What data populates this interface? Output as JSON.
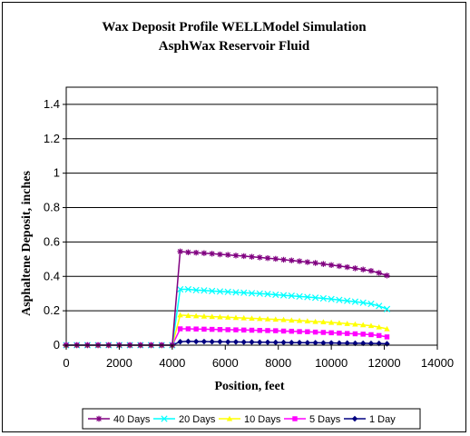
{
  "chart_data": {
    "type": "line",
    "title": "Wax Deposit Profile WELLModel Simulation",
    "subtitle": "AsphWax Reservoir Fluid",
    "xlabel": "Position, feet",
    "ylabel": "Asphaltene Deposit, inches",
    "xlim": [
      0,
      14000
    ],
    "ylim": [
      0,
      1.5
    ],
    "x_ticks": [
      "0",
      "2000",
      "4000",
      "6000",
      "8000",
      "10000",
      "12000",
      "14000"
    ],
    "y_ticks": [
      "0",
      "0.2",
      "0.4",
      "0.6",
      "0.8",
      "1",
      "1.2",
      "1.4"
    ],
    "grid": "horizontal",
    "legend_position": "bottom",
    "series": [
      {
        "name": "40 Days",
        "color": "#800080",
        "marker": "star",
        "x": [
          0,
          400,
          800,
          1200,
          1600,
          2000,
          2400,
          2800,
          3200,
          3600,
          4000,
          4300,
          4600,
          4900,
          5200,
          5500,
          5800,
          6100,
          6400,
          6700,
          7000,
          7300,
          7600,
          7900,
          8200,
          8500,
          8800,
          9100,
          9400,
          9700,
          10000,
          10300,
          10600,
          10900,
          11200,
          11500,
          11800,
          12100
        ],
        "y": [
          0,
          0,
          0,
          0,
          0,
          0,
          0,
          0,
          0,
          0,
          0,
          0.545,
          0.54,
          0.538,
          0.535,
          0.532,
          0.528,
          0.525,
          0.521,
          0.518,
          0.514,
          0.51,
          0.506,
          0.502,
          0.497,
          0.493,
          0.488,
          0.483,
          0.478,
          0.472,
          0.466,
          0.46,
          0.454,
          0.447,
          0.44,
          0.432,
          0.42,
          0.405
        ]
      },
      {
        "name": "20 Days",
        "color": "#00FFFF",
        "marker": "x",
        "x": [
          0,
          400,
          800,
          1200,
          1600,
          2000,
          2400,
          2800,
          3200,
          3600,
          4000,
          4300,
          4600,
          4900,
          5200,
          5500,
          5800,
          6100,
          6400,
          6700,
          7000,
          7300,
          7600,
          7900,
          8200,
          8500,
          8800,
          9100,
          9400,
          9700,
          10000,
          10300,
          10600,
          10900,
          11200,
          11500,
          11800,
          12100
        ],
        "y": [
          0,
          0,
          0,
          0,
          0,
          0,
          0,
          0,
          0,
          0,
          0,
          0.325,
          0.325,
          0.32,
          0.318,
          0.315,
          0.312,
          0.31,
          0.307,
          0.305,
          0.302,
          0.3,
          0.297,
          0.293,
          0.29,
          0.287,
          0.283,
          0.28,
          0.276,
          0.272,
          0.268,
          0.263,
          0.258,
          0.253,
          0.247,
          0.24,
          0.228,
          0.21
        ]
      },
      {
        "name": "10 Days",
        "color": "#FFFF00",
        "marker": "triangle",
        "x": [
          0,
          400,
          800,
          1200,
          1600,
          2000,
          2400,
          2800,
          3200,
          3600,
          4000,
          4300,
          4600,
          4900,
          5200,
          5500,
          5800,
          6100,
          6400,
          6700,
          7000,
          7300,
          7600,
          7900,
          8200,
          8500,
          8800,
          9100,
          9400,
          9700,
          10000,
          10300,
          10600,
          10900,
          11200,
          11500,
          11800,
          12100
        ],
        "y": [
          0,
          0,
          0,
          0,
          0,
          0,
          0,
          0,
          0,
          0,
          0,
          0.175,
          0.172,
          0.17,
          0.168,
          0.166,
          0.164,
          0.162,
          0.16,
          0.158,
          0.156,
          0.154,
          0.152,
          0.15,
          0.148,
          0.145,
          0.143,
          0.14,
          0.137,
          0.135,
          0.132,
          0.129,
          0.125,
          0.122,
          0.118,
          0.113,
          0.105,
          0.095
        ]
      },
      {
        "name": "5 Days",
        "color": "#FF00FF",
        "marker": "square",
        "x": [
          0,
          400,
          800,
          1200,
          1600,
          2000,
          2400,
          2800,
          3200,
          3600,
          4000,
          4300,
          4600,
          4900,
          5200,
          5500,
          5800,
          6100,
          6400,
          6700,
          7000,
          7300,
          7600,
          7900,
          8200,
          8500,
          8800,
          9100,
          9400,
          9700,
          10000,
          10300,
          10600,
          10900,
          11200,
          11500,
          11800,
          12100
        ],
        "y": [
          0,
          0,
          0,
          0,
          0,
          0,
          0,
          0,
          0,
          0,
          0,
          0.095,
          0.095,
          0.094,
          0.093,
          0.092,
          0.091,
          0.09,
          0.089,
          0.088,
          0.087,
          0.086,
          0.085,
          0.084,
          0.082,
          0.081,
          0.079,
          0.078,
          0.076,
          0.074,
          0.072,
          0.07,
          0.068,
          0.066,
          0.064,
          0.061,
          0.056,
          0.048
        ]
      },
      {
        "name": "1 Day",
        "color": "#000080",
        "marker": "diamond",
        "x": [
          0,
          400,
          800,
          1200,
          1600,
          2000,
          2400,
          2800,
          3200,
          3600,
          4000,
          4300,
          4600,
          4900,
          5200,
          5500,
          5800,
          6100,
          6400,
          6700,
          7000,
          7300,
          7600,
          7900,
          8200,
          8500,
          8800,
          9100,
          9400,
          9700,
          10000,
          10300,
          10600,
          10900,
          11200,
          11500,
          11800,
          12100
        ],
        "y": [
          0,
          0,
          0,
          0,
          0,
          0,
          0,
          0,
          0,
          0,
          0,
          0.02,
          0.022,
          0.021,
          0.021,
          0.02,
          0.02,
          0.019,
          0.019,
          0.018,
          0.018,
          0.017,
          0.017,
          0.016,
          0.016,
          0.015,
          0.015,
          0.014,
          0.014,
          0.013,
          0.013,
          0.012,
          0.012,
          0.011,
          0.011,
          0.01,
          0.01,
          0.008
        ]
      }
    ]
  }
}
